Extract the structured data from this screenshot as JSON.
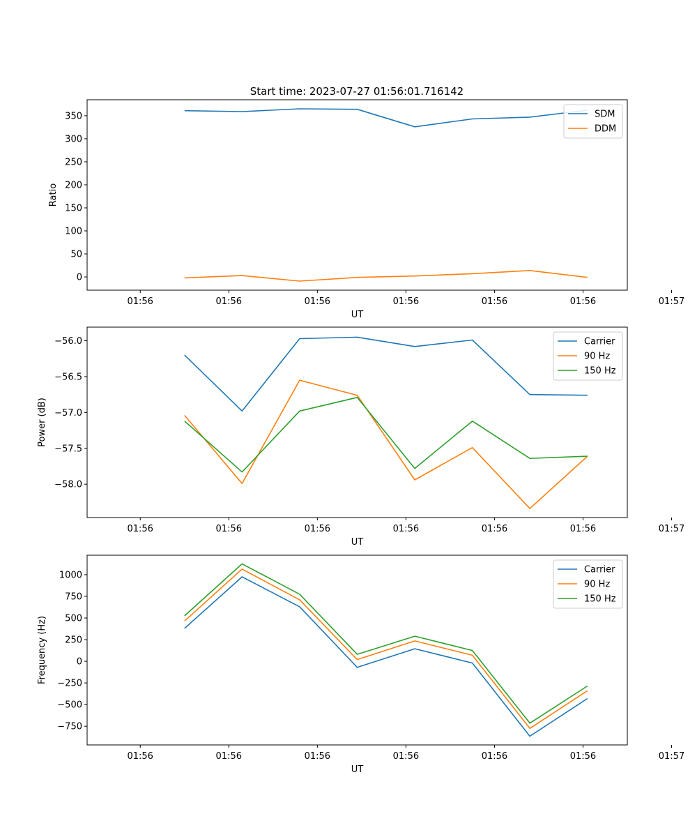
{
  "figure_title": "Start time: 2023-07-27 01:56:01.716142",
  "x_tick_labels": [
    "01:56",
    "01:56",
    "01:56",
    "01:56",
    "01:56",
    "01:56",
    "01:57"
  ],
  "colors": {
    "blue": "#1f77b4",
    "orange": "#ff7f0e",
    "green": "#2ca02c"
  },
  "chart_data": [
    {
      "type": "line",
      "title": "Start time: 2023-07-27 01:56:01.716142",
      "xlabel": "UT",
      "ylabel": "Ratio",
      "x": [
        0.5,
        1.15,
        1.8,
        2.45,
        3.1,
        3.75,
        4.4,
        5.05
      ],
      "xlim": [
        -0.6,
        5.5
      ],
      "ylim": [
        -28.7,
        384.7
      ],
      "y_ticks": [
        0,
        50,
        100,
        150,
        200,
        250,
        300,
        350
      ],
      "series": [
        {
          "name": "SDM",
          "color": "#1f77b4",
          "values": [
            361,
            359,
            365,
            364,
            326,
            343,
            347,
            362
          ]
        },
        {
          "name": "DDM",
          "color": "#ff7f0e",
          "values": [
            -2,
            3,
            -9,
            -1,
            2,
            7,
            14,
            -1
          ]
        }
      ],
      "legend": "top-right"
    },
    {
      "type": "line",
      "title": "",
      "xlabel": "UT",
      "ylabel": "Power (dB)",
      "x": [
        0.5,
        1.15,
        1.8,
        2.45,
        3.1,
        3.75,
        4.4,
        5.05
      ],
      "xlim": [
        -0.6,
        5.5
      ],
      "ylim": [
        -58.465,
        -55.81
      ],
      "y_ticks": [
        -58.0,
        -57.5,
        -57.0,
        -56.5,
        -56.0
      ],
      "y_tick_labels": [
        "−58.0",
        "−57.5",
        "−57.0",
        "−56.5",
        "−56.0"
      ],
      "series": [
        {
          "name": "Carrier",
          "color": "#1f77b4",
          "values": [
            -56.2,
            -56.98,
            -55.97,
            -55.95,
            -56.08,
            -55.99,
            -56.75,
            -56.76
          ]
        },
        {
          "name": "90 Hz",
          "color": "#ff7f0e",
          "values": [
            -57.04,
            -57.99,
            -56.55,
            -56.76,
            -57.94,
            -57.49,
            -58.34,
            -57.61
          ]
        },
        {
          "name": "150 Hz",
          "color": "#2ca02c",
          "values": [
            -57.12,
            -57.83,
            -56.98,
            -56.79,
            -57.78,
            -57.12,
            -57.64,
            -57.61
          ]
        }
      ],
      "legend": "top-right"
    },
    {
      "type": "line",
      "title": "",
      "xlabel": "UT",
      "ylabel": "Frequency (Hz)",
      "x": [
        0.5,
        1.15,
        1.8,
        2.45,
        3.1,
        3.75,
        4.4,
        5.05
      ],
      "xlim": [
        -0.6,
        5.5
      ],
      "ylim": [
        -966,
        1225
      ],
      "y_ticks": [
        -750,
        -500,
        -250,
        0,
        250,
        500,
        750,
        1000
      ],
      "y_tick_labels": [
        "−750",
        "−500",
        "−250",
        "0",
        "250",
        "500",
        "750",
        "1000"
      ],
      "series": [
        {
          "name": "Carrier",
          "color": "#1f77b4",
          "values": [
            380,
            975,
            630,
            -70,
            145,
            -20,
            -865,
            -430
          ]
        },
        {
          "name": "90 Hz",
          "color": "#ff7f0e",
          "values": [
            465,
            1065,
            710,
            20,
            235,
            70,
            -775,
            -340
          ]
        },
        {
          "name": "150 Hz",
          "color": "#2ca02c",
          "values": [
            525,
            1125,
            775,
            80,
            290,
            125,
            -715,
            -285
          ]
        }
      ],
      "legend": "top-right"
    }
  ]
}
